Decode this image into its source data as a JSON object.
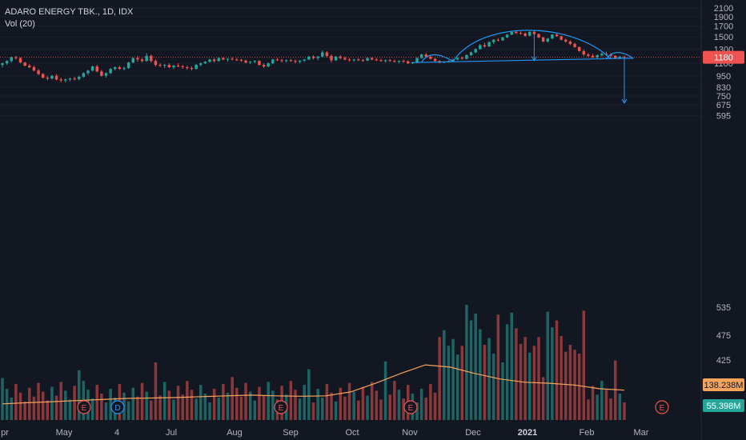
{
  "header": {
    "symbol_line": "ADARO ENERGY TBK., 1D, IDX",
    "volume_line": "Vol (20)"
  },
  "colors": {
    "background": "#131722",
    "up": "#26a69a",
    "down": "#ef5350",
    "pattern": "#2196f3",
    "volume_ma": "#f7a35c",
    "axis_text": "#b2b5be",
    "price_badge": "#ef5350",
    "volume_badge": "#26a69a",
    "volume_ma_badge": "#f7a35c"
  },
  "chart_data": {
    "type": "candlestick",
    "symbol": "ADARO ENERGY TBK.",
    "interval": "1D",
    "exchange": "IDX",
    "y_scale": "log",
    "price_ticks": [
      595,
      675,
      750,
      830,
      950,
      1100,
      1300,
      1500,
      1700,
      1900,
      2100
    ],
    "x_labels": [
      "pr",
      "May",
      "4",
      "Jul",
      "Aug",
      "Sep",
      "Oct",
      "Nov",
      "Dec",
      "2021",
      "Feb",
      "Mar"
    ],
    "volume_ticks": [
      475,
      425
    ],
    "volume_ticks_partial": [
      535
    ],
    "last_price": 1180,
    "volume_last": "55.398M",
    "volume_ma_last": "138.238M",
    "events": [
      "E",
      "D",
      "E",
      "E",
      "E"
    ],
    "volume_ma": [
      75,
      80,
      85,
      90,
      95,
      100,
      102,
      104,
      108,
      112,
      115,
      112,
      110,
      112,
      130,
      170,
      215,
      255,
      245,
      215,
      190,
      175,
      170,
      162,
      145,
      138
    ],
    "ohlc": [
      [
        1080,
        1110,
        1050,
        1100
      ],
      [
        1100,
        1140,
        1080,
        1130
      ],
      [
        1130,
        1190,
        1110,
        1180
      ],
      [
        1180,
        1200,
        1150,
        1170
      ],
      [
        1170,
        1180,
        1100,
        1110
      ],
      [
        1110,
        1120,
        1060,
        1070
      ],
      [
        1070,
        1090,
        1040,
        1050
      ],
      [
        1050,
        1070,
        1000,
        1010
      ],
      [
        1010,
        1030,
        960,
        970
      ],
      [
        970,
        980,
        920,
        930
      ],
      [
        930,
        950,
        900,
        920
      ],
      [
        920,
        960,
        910,
        950
      ],
      [
        950,
        970,
        900,
        910
      ],
      [
        910,
        930,
        880,
        900
      ],
      [
        900,
        920,
        880,
        910
      ],
      [
        910,
        930,
        890,
        920
      ],
      [
        920,
        940,
        900,
        915
      ],
      [
        915,
        950,
        900,
        940
      ],
      [
        940,
        990,
        930,
        980
      ],
      [
        980,
        1020,
        960,
        1010
      ],
      [
        1010,
        1070,
        1000,
        1060
      ],
      [
        1060,
        1080,
        990,
        1000
      ],
      [
        1000,
        1020,
        940,
        950
      ],
      [
        950,
        990,
        930,
        980
      ],
      [
        980,
        1040,
        970,
        1030
      ],
      [
        1030,
        1060,
        1010,
        1050
      ],
      [
        1050,
        1070,
        1020,
        1030
      ],
      [
        1030,
        1060,
        1010,
        1040
      ],
      [
        1040,
        1120,
        1030,
        1110
      ],
      [
        1110,
        1180,
        1100,
        1170
      ],
      [
        1170,
        1200,
        1120,
        1150
      ],
      [
        1150,
        1170,
        1110,
        1130
      ],
      [
        1130,
        1240,
        1120,
        1200
      ],
      [
        1200,
        1220,
        1110,
        1130
      ],
      [
        1130,
        1150,
        1060,
        1080
      ],
      [
        1080,
        1100,
        1050,
        1070
      ],
      [
        1070,
        1090,
        1040,
        1080
      ],
      [
        1080,
        1100,
        1040,
        1050
      ],
      [
        1050,
        1080,
        1030,
        1070
      ],
      [
        1070,
        1100,
        1050,
        1060
      ],
      [
        1060,
        1080,
        1030,
        1050
      ],
      [
        1050,
        1070,
        1020,
        1040
      ],
      [
        1040,
        1060,
        1010,
        1030
      ],
      [
        1030,
        1090,
        1020,
        1080
      ],
      [
        1080,
        1110,
        1060,
        1100
      ],
      [
        1100,
        1130,
        1090,
        1120
      ],
      [
        1120,
        1160,
        1110,
        1150
      ],
      [
        1150,
        1170,
        1110,
        1130
      ],
      [
        1130,
        1180,
        1120,
        1170
      ],
      [
        1170,
        1180,
        1140,
        1150
      ],
      [
        1150,
        1170,
        1120,
        1160
      ],
      [
        1160,
        1180,
        1140,
        1150
      ],
      [
        1150,
        1170,
        1130,
        1145
      ],
      [
        1145,
        1160,
        1120,
        1135
      ],
      [
        1135,
        1150,
        1100,
        1110
      ],
      [
        1110,
        1130,
        1090,
        1120
      ],
      [
        1120,
        1140,
        1100,
        1130
      ],
      [
        1130,
        1140,
        1070,
        1080
      ],
      [
        1080,
        1100,
        1040,
        1060
      ],
      [
        1060,
        1110,
        1050,
        1100
      ],
      [
        1100,
        1160,
        1090,
        1150
      ],
      [
        1150,
        1170,
        1130,
        1140
      ],
      [
        1140,
        1160,
        1110,
        1130
      ],
      [
        1130,
        1150,
        1110,
        1140
      ],
      [
        1140,
        1160,
        1120,
        1130
      ],
      [
        1130,
        1150,
        1100,
        1120
      ],
      [
        1120,
        1140,
        1100,
        1135
      ],
      [
        1135,
        1160,
        1120,
        1150
      ],
      [
        1150,
        1200,
        1140,
        1190
      ],
      [
        1190,
        1210,
        1150,
        1170
      ],
      [
        1170,
        1200,
        1140,
        1190
      ],
      [
        1190,
        1280,
        1180,
        1250
      ],
      [
        1250,
        1270,
        1180,
        1200
      ],
      [
        1200,
        1220,
        1110,
        1140
      ],
      [
        1140,
        1200,
        1130,
        1190
      ],
      [
        1190,
        1210,
        1150,
        1170
      ],
      [
        1170,
        1190,
        1140,
        1150
      ],
      [
        1150,
        1170,
        1120,
        1140
      ],
      [
        1140,
        1160,
        1120,
        1150
      ],
      [
        1150,
        1170,
        1130,
        1140
      ],
      [
        1140,
        1160,
        1120,
        1135
      ],
      [
        1135,
        1180,
        1130,
        1170
      ],
      [
        1170,
        1180,
        1140,
        1150
      ],
      [
        1150,
        1170,
        1130,
        1140
      ],
      [
        1140,
        1160,
        1120,
        1130
      ],
      [
        1130,
        1150,
        1110,
        1140
      ],
      [
        1140,
        1160,
        1120,
        1130
      ],
      [
        1130,
        1150,
        1110,
        1120
      ],
      [
        1120,
        1140,
        1100,
        1130
      ],
      [
        1130,
        1150,
        1110,
        1125
      ],
      [
        1125,
        1140,
        1090,
        1100
      ],
      [
        1100,
        1120,
        1090,
        1110
      ],
      [
        1110,
        1180,
        1100,
        1170
      ],
      [
        1170,
        1230,
        1160,
        1220
      ],
      [
        1220,
        1240,
        1180,
        1190
      ],
      [
        1190,
        1210,
        1150,
        1160
      ],
      [
        1160,
        1170,
        1120,
        1130
      ],
      [
        1130,
        1140,
        1100,
        1110
      ],
      [
        1110,
        1130,
        1100,
        1120
      ],
      [
        1120,
        1140,
        1110,
        1130
      ],
      [
        1130,
        1160,
        1120,
        1150
      ],
      [
        1150,
        1180,
        1140,
        1170
      ],
      [
        1170,
        1190,
        1150,
        1160
      ],
      [
        1160,
        1220,
        1150,
        1210
      ],
      [
        1210,
        1260,
        1200,
        1250
      ],
      [
        1250,
        1310,
        1240,
        1300
      ],
      [
        1300,
        1380,
        1290,
        1360
      ],
      [
        1360,
        1400,
        1320,
        1340
      ],
      [
        1340,
        1420,
        1330,
        1410
      ],
      [
        1410,
        1460,
        1380,
        1450
      ],
      [
        1450,
        1480,
        1420,
        1440
      ],
      [
        1440,
        1500,
        1430,
        1490
      ],
      [
        1490,
        1550,
        1480,
        1540
      ],
      [
        1540,
        1600,
        1530,
        1590
      ],
      [
        1590,
        1620,
        1550,
        1570
      ],
      [
        1570,
        1600,
        1540,
        1560
      ],
      [
        1560,
        1580,
        1500,
        1520
      ],
      [
        1520,
        1600,
        1510,
        1590
      ],
      [
        1590,
        1610,
        1540,
        1550
      ],
      [
        1550,
        1560,
        1480,
        1490
      ],
      [
        1490,
        1500,
        1410,
        1420
      ],
      [
        1420,
        1480,
        1400,
        1470
      ],
      [
        1470,
        1550,
        1460,
        1540
      ],
      [
        1540,
        1560,
        1500,
        1510
      ],
      [
        1510,
        1520,
        1440,
        1450
      ],
      [
        1450,
        1470,
        1400,
        1420
      ],
      [
        1420,
        1440,
        1360,
        1380
      ],
      [
        1380,
        1400,
        1320,
        1330
      ],
      [
        1330,
        1340,
        1260,
        1270
      ],
      [
        1270,
        1290,
        1200,
        1220
      ],
      [
        1220,
        1240,
        1180,
        1200
      ],
      [
        1200,
        1230,
        1170,
        1180
      ],
      [
        1180,
        1220,
        1160,
        1210
      ],
      [
        1210,
        1250,
        1190,
        1230
      ],
      [
        1230,
        1260,
        1200,
        1220
      ],
      [
        1220,
        1240,
        1180,
        1200
      ],
      [
        1200,
        1210,
        1160,
        1170
      ],
      [
        1170,
        1200,
        1160,
        1190
      ],
      [
        1190,
        1200,
        1160,
        1180
      ]
    ]
  }
}
